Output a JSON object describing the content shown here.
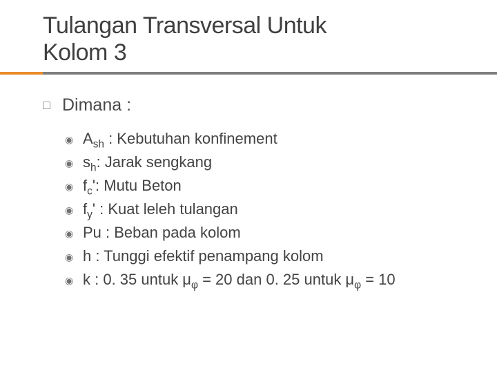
{
  "title_line1": "Tulangan Transversal Untuk",
  "title_line2": "Kolom 3",
  "colors": {
    "orange": "#e98b2a",
    "underline_gray": "#7f7f7f",
    "text_dark": "#3f3f3f",
    "text_body": "#4a4a4a",
    "marker": "#707070"
  },
  "level1_marker": "□",
  "level2_marker": "◉",
  "level1_text": "Dimana :",
  "items": [
    {
      "html": "A<sub>sh</sub> : Kebutuhan konfinement"
    },
    {
      "html": "s<sub>h</sub>: Jarak sengkang"
    },
    {
      "html": "f<sub>c</sub>': Mutu Beton"
    },
    {
      "html": "f<sub>y</sub>' : Kuat leleh tulangan"
    },
    {
      "html": "Pu : Beban pada kolom"
    },
    {
      "html": "h : Tunggi efektif penampang kolom"
    },
    {
      "html": "k : 0. 35 untuk μ<sub>φ</sub> = 20 dan 0. 25 untuk μ<sub>φ</sub> = 10"
    }
  ]
}
